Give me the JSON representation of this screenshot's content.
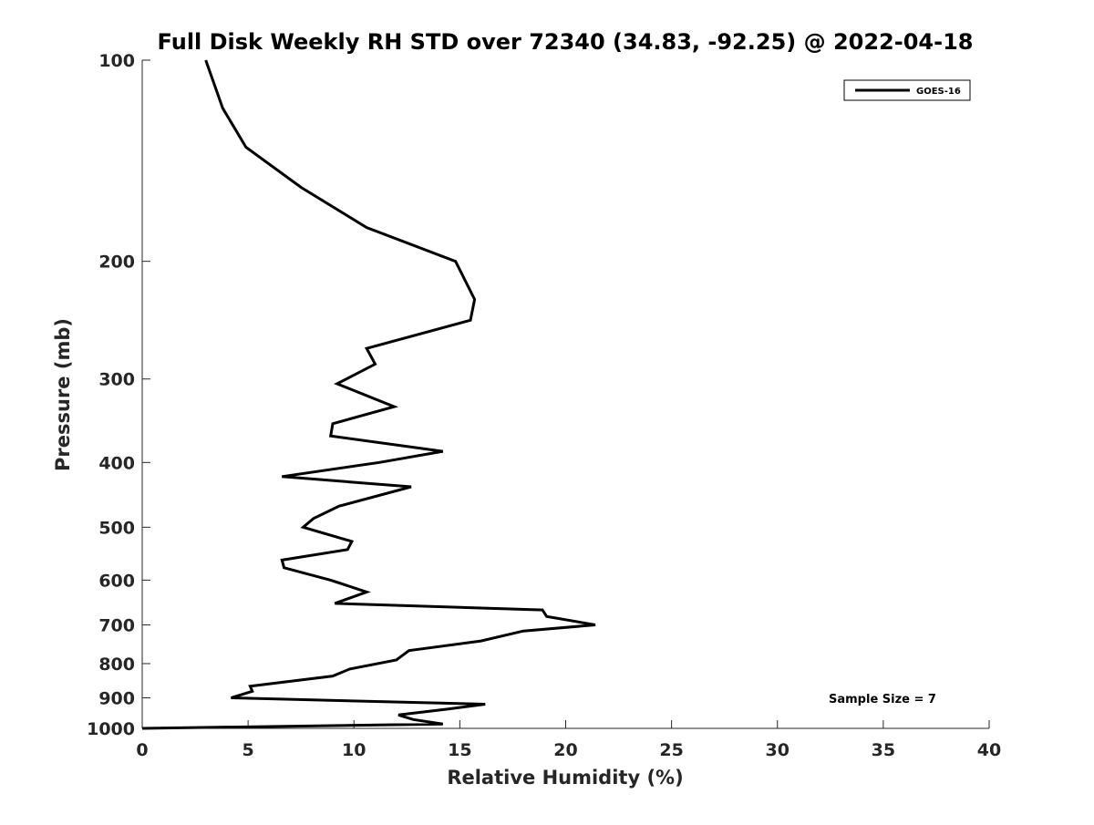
{
  "chart_data": {
    "type": "line",
    "title": "Full Disk Weekly RH STD over 72340 (34.83, -92.25) @ 2022-04-18",
    "xlabel": "Relative Humidity (%)",
    "ylabel": "Pressure (mb)",
    "xlim": [
      0,
      40
    ],
    "ylim": [
      1000,
      100
    ],
    "yscale": "log",
    "x_ticks": [
      0,
      5,
      10,
      15,
      20,
      25,
      30,
      35,
      40
    ],
    "x_tick_labels": [
      "0",
      "5",
      "10",
      "15",
      "20",
      "25",
      "30",
      "35",
      "40"
    ],
    "y_ticks": [
      100,
      200,
      300,
      400,
      500,
      600,
      700,
      800,
      900,
      1000
    ],
    "y_tick_labels": [
      "100",
      "200",
      "300",
      "400",
      "500",
      "600",
      "700",
      "800",
      "900",
      "1000"
    ],
    "grid": false,
    "legend_position": "top-right",
    "series": [
      {
        "name": "GOES-16",
        "color": "#000000",
        "points": [
          [
            0.0,
            1000
          ],
          [
            14.2,
            985
          ],
          [
            12.8,
            970
          ],
          [
            12.1,
            955
          ],
          [
            14.5,
            935
          ],
          [
            16.2,
            920
          ],
          [
            4.2,
            900
          ],
          [
            5.2,
            880
          ],
          [
            5.1,
            865
          ],
          [
            9.0,
            835
          ],
          [
            9.8,
            815
          ],
          [
            12.0,
            790
          ],
          [
            12.6,
            765
          ],
          [
            16.0,
            740
          ],
          [
            18.0,
            715
          ],
          [
            21.4,
            700
          ],
          [
            19.1,
            680
          ],
          [
            18.9,
            665
          ],
          [
            9.1,
            650
          ],
          [
            10.6,
            625
          ],
          [
            8.9,
            600
          ],
          [
            6.7,
            575
          ],
          [
            6.6,
            560
          ],
          [
            9.7,
            540
          ],
          [
            9.9,
            525
          ],
          [
            7.6,
            500
          ],
          [
            8.1,
            485
          ],
          [
            9.3,
            465
          ],
          [
            12.7,
            435
          ],
          [
            6.6,
            420
          ],
          [
            11.2,
            400
          ],
          [
            14.2,
            385
          ],
          [
            8.9,
            365
          ],
          [
            9.0,
            350
          ],
          [
            11.9,
            330
          ],
          [
            9.2,
            305
          ],
          [
            11.0,
            285
          ],
          [
            10.6,
            270
          ],
          [
            15.5,
            245
          ],
          [
            15.7,
            228
          ],
          [
            14.8,
            200
          ],
          [
            10.6,
            178
          ],
          [
            7.5,
            155
          ],
          [
            4.9,
            135
          ],
          [
            3.8,
            118
          ],
          [
            3.0,
            100
          ]
        ]
      }
    ],
    "annotations": [
      "Sample Size = 7"
    ]
  }
}
